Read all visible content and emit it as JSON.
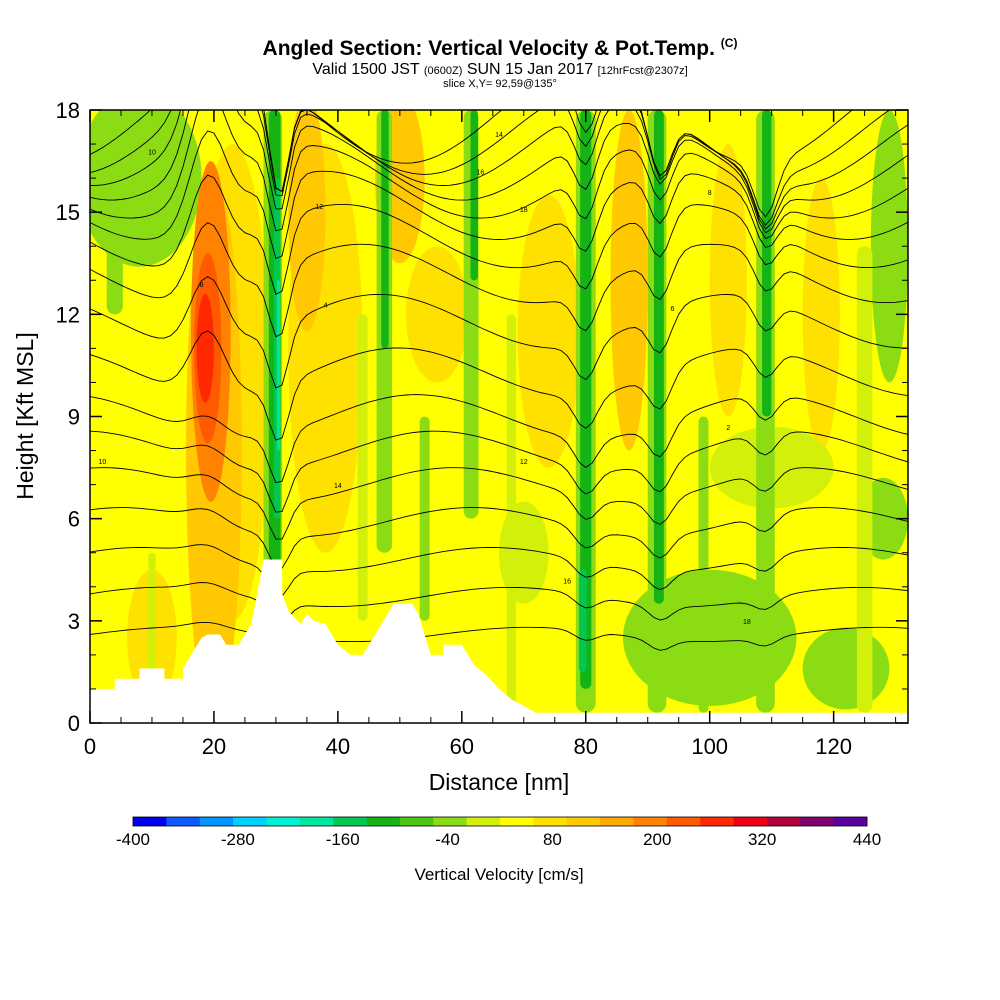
{
  "header": {
    "title": "Angled Section: Vertical Velocity & Pot.Temp.",
    "title_suffix": "(C)",
    "valid_prefix": "Valid 1500 JST",
    "valid_utc": "(0600Z)",
    "valid_date": "SUN 15 Jan 2017",
    "forecast": "[12hrFcst@2307z]",
    "slice": "slice X,Y= 92,59@135°"
  },
  "chart_data": {
    "type": "heatmap",
    "xlabel": "Distance [nm]",
    "ylabel": "Height [Kft MSL]",
    "xlim": [
      0,
      132
    ],
    "ylim": [
      0,
      18
    ],
    "x_ticks": [
      "0",
      "20",
      "40",
      "60",
      "80",
      "100",
      "120"
    ],
    "y_ticks": [
      "0",
      "3",
      "6",
      "9",
      "12",
      "15",
      "18"
    ],
    "colorbar": {
      "label": "Vertical Velocity [cm/s]",
      "tick_labels": [
        "-400",
        "-280",
        "-160",
        "-40",
        "80",
        "200",
        "320",
        "440"
      ],
      "levels": [
        -400,
        -360,
        -320,
        -280,
        -240,
        -200,
        -160,
        -120,
        -80,
        -40,
        0,
        40,
        80,
        120,
        160,
        200,
        240,
        280,
        320,
        360,
        400,
        440
      ],
      "colors": [
        "#0000f0",
        "#0a5aff",
        "#0096ff",
        "#00d2ff",
        "#00f0d2",
        "#00e6a0",
        "#00c850",
        "#14b414",
        "#4bc814",
        "#8cdc14",
        "#d2f00a",
        "#ffff00",
        "#ffe100",
        "#ffc800",
        "#ffaa00",
        "#ff8200",
        "#ff5a00",
        "#ff2800",
        "#f00014",
        "#b4003c",
        "#82006e",
        "#5a00a0"
      ]
    },
    "contour_labels": [
      "10",
      "12",
      "14",
      "16",
      "18",
      "8",
      "6",
      "4",
      "2"
    ],
    "terrain": [
      [
        0,
        1.0
      ],
      [
        4,
        1.0
      ],
      [
        4,
        1.3
      ],
      [
        8,
        1.3
      ],
      [
        8,
        1.6
      ],
      [
        12,
        1.6
      ],
      [
        12,
        1.3
      ],
      [
        15,
        1.3
      ],
      [
        15,
        1.6
      ],
      [
        16,
        1.9
      ],
      [
        17,
        2.2
      ],
      [
        18,
        2.5
      ],
      [
        19,
        2.6
      ],
      [
        21,
        2.6
      ],
      [
        22,
        2.3
      ],
      [
        24,
        2.3
      ],
      [
        25,
        2.6
      ],
      [
        26,
        2.9
      ],
      [
        27,
        3.8
      ],
      [
        28,
        4.8
      ],
      [
        31,
        4.8
      ],
      [
        31,
        3.8
      ],
      [
        32,
        3.3
      ],
      [
        33,
        3.1
      ],
      [
        34,
        2.9
      ],
      [
        35,
        3.2
      ],
      [
        36,
        3.0
      ],
      [
        38,
        2.9
      ],
      [
        40,
        2.3
      ],
      [
        42,
        2.0
      ],
      [
        44,
        2.0
      ],
      [
        45,
        2.3
      ],
      [
        46,
        2.6
      ],
      [
        47,
        2.9
      ],
      [
        48,
        3.2
      ],
      [
        49,
        3.5
      ],
      [
        52,
        3.5
      ],
      [
        53,
        3.2
      ],
      [
        55,
        2.0
      ],
      [
        57,
        2.0
      ],
      [
        57,
        2.3
      ],
      [
        60,
        2.3
      ],
      [
        61,
        2.0
      ],
      [
        62,
        1.7
      ],
      [
        64,
        1.4
      ],
      [
        66,
        1.0
      ],
      [
        68,
        0.7
      ],
      [
        70,
        0.5
      ],
      [
        72,
        0.3
      ],
      [
        132,
        0.3
      ]
    ]
  }
}
